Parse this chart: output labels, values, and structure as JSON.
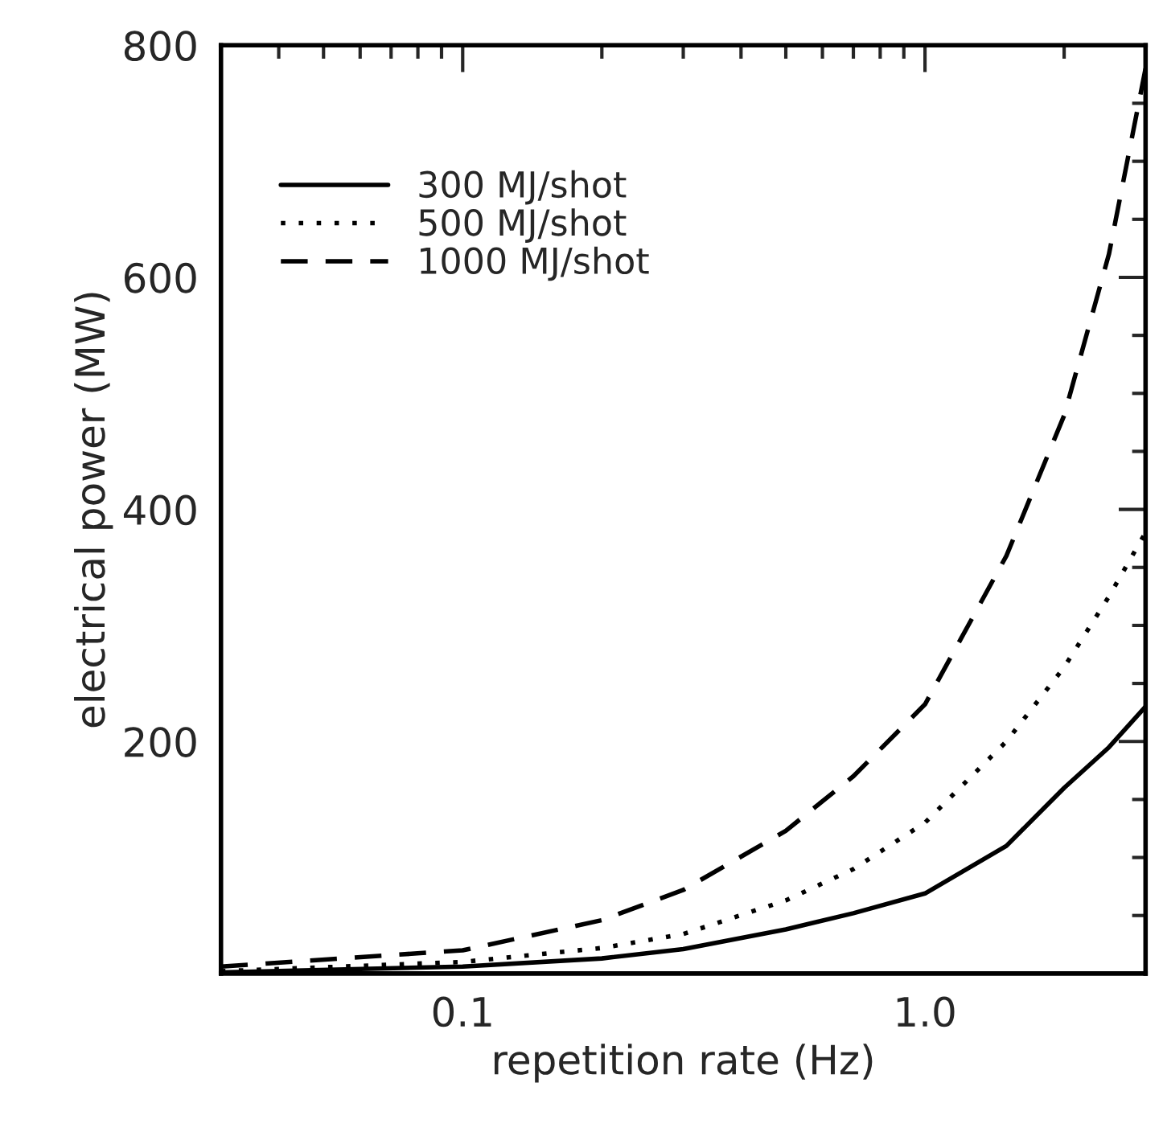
{
  "chart_data": {
    "type": "line",
    "xlabel": "repetition rate (Hz)",
    "ylabel": "electrical power (MW)",
    "log": "x",
    "xlim": [
      0.03,
      3
    ],
    "xticks": [
      0.1,
      {
        "value": 1,
        "label": "1.0"
      }
    ],
    "ylim": [
      0,
      800
    ],
    "yticks": [
      {
        "value": 0,
        "label": null
      },
      200,
      400,
      600,
      800
    ],
    "grid": false,
    "legend": "top left",
    "marker": "none",
    "x": [
      0.03,
      0.1,
      0.2,
      0.3,
      0.5,
      0.7,
      1.0,
      1.5,
      2.0,
      2.5,
      3.0
    ],
    "series": [
      {
        "name": "300 MJ/shot",
        "color": "#000000",
        "line_style": "solid",
        "values": [
          1,
          6,
          13,
          21,
          38,
          52,
          69,
          110,
          160,
          195,
          230
        ]
      },
      {
        "name": "500 MJ/shot",
        "color": "#000000",
        "line_style": "dotted",
        "values": [
          2,
          10,
          22,
          34,
          63,
          90,
          130,
          200,
          264,
          325,
          380
        ]
      },
      {
        "name": "1000 MJ/shot",
        "color": "#000000",
        "line_style": "dashed",
        "values": [
          6,
          20,
          46,
          72,
          123,
          170,
          232,
          360,
          481,
          620,
          780
        ]
      }
    ]
  }
}
